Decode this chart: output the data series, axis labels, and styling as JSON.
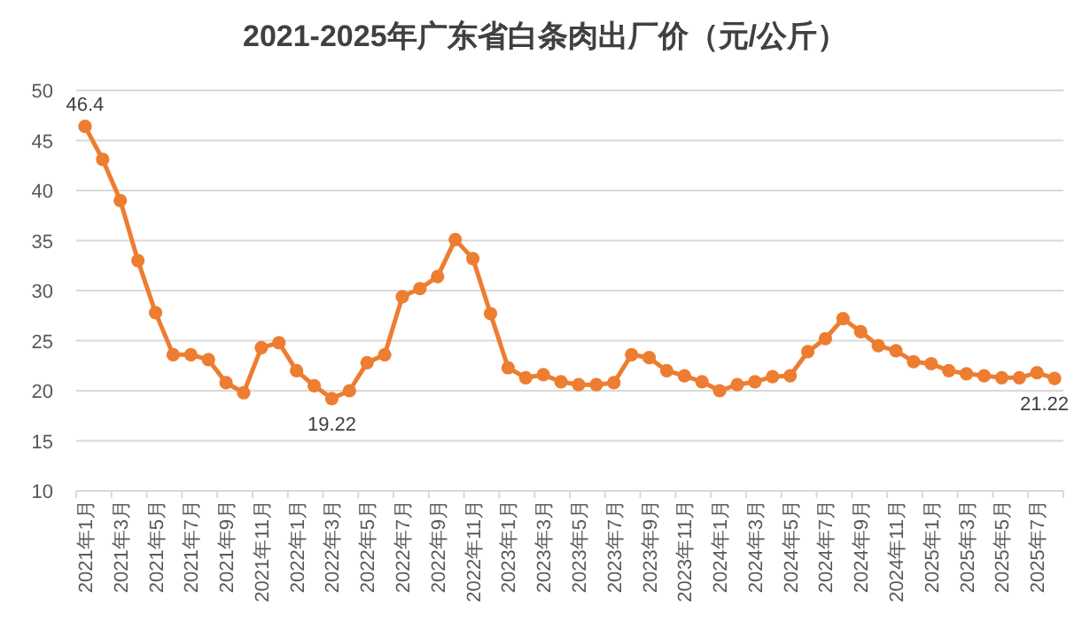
{
  "chart_data": {
    "type": "line",
    "title": "2021-2025年广东省白条肉出厂价（元/公斤）",
    "categories": [
      "2021年1月",
      null,
      "2021年3月",
      null,
      "2021年5月",
      null,
      "2021年7月",
      null,
      "2021年9月",
      null,
      "2021年11月",
      null,
      "2022年1月",
      null,
      "2022年3月",
      null,
      "2022年5月",
      null,
      "2022年7月",
      null,
      "2022年9月",
      null,
      "2022年11月",
      null,
      "2023年1月",
      null,
      "2023年3月",
      null,
      "2023年5月",
      null,
      "2023年7月",
      null,
      "2023年9月",
      null,
      "2023年11月",
      null,
      "2024年1月",
      null,
      "2024年3月",
      null,
      "2024年5月",
      null,
      "2024年7月",
      null,
      "2024年9月",
      null,
      "2024年11月",
      null,
      "2025年1月",
      null,
      "2025年3月",
      null,
      "2025年5月",
      null,
      "2025年7月",
      null
    ],
    "series": [
      {
        "color": "#ed7d31",
        "values": [
          46.4,
          43.1,
          39,
          33,
          27.8,
          23.6,
          23.6,
          23.1,
          20.8,
          19.8,
          24.3,
          24.8,
          22,
          20.5,
          19.22,
          20,
          22.8,
          23.6,
          29.4,
          30.2,
          31.4,
          35.1,
          33.2,
          27.7,
          22.3,
          21.3,
          21.6,
          20.9,
          20.6,
          20.6,
          20.8,
          23.6,
          23.3,
          22,
          21.5,
          20.9,
          20,
          20.6,
          20.9,
          21.4,
          21.5,
          23.9,
          25.2,
          27.2,
          25.9,
          24.5,
          24,
          22.9,
          22.7,
          22,
          21.7,
          21.5,
          21.3,
          21.3,
          21.8,
          21.22
        ],
        "value_labels": [
          "46.4",
          null,
          null,
          null,
          null,
          null,
          null,
          null,
          null,
          null,
          null,
          null,
          null,
          null,
          "19.22",
          null,
          null,
          null,
          null,
          null,
          null,
          null,
          null,
          null,
          null,
          null,
          null,
          null,
          null,
          null,
          null,
          null,
          null,
          null,
          null,
          null,
          null,
          null,
          null,
          null,
          null,
          null,
          null,
          null,
          null,
          null,
          null,
          null,
          null,
          null,
          null,
          null,
          null,
          null,
          null,
          "21.22"
        ]
      }
    ],
    "ylim": [
      10,
      50
    ],
    "yticks": [
      10,
      15,
      20,
      25,
      30,
      35,
      40,
      45,
      50
    ],
    "grid": "y",
    "marker": "circle",
    "line_style": "solid"
  }
}
